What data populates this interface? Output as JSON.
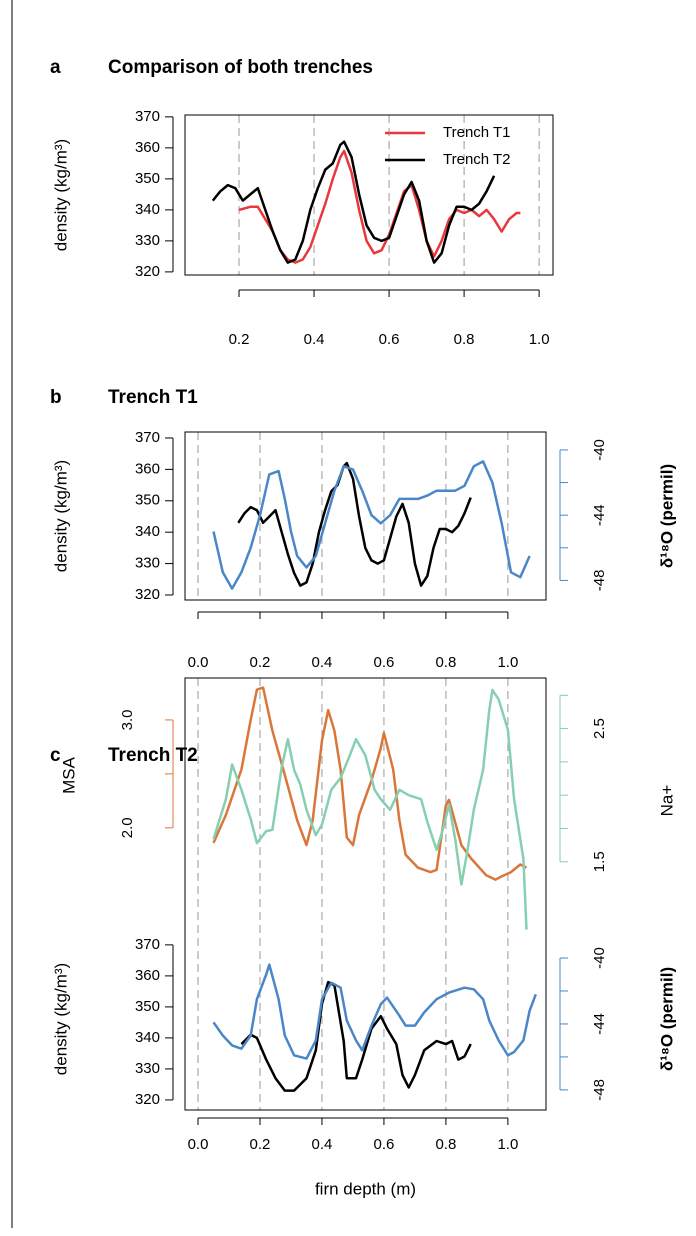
{
  "chart_data": [
    {
      "type": "line",
      "label": "a",
      "title": "Comparison of both trenches",
      "xlim": [
        0.056,
        1.037
      ],
      "xticks": [
        0.2,
        0.4,
        0.6,
        0.8,
        {
          "value": 1,
          "label": "1.0"
        }
      ],
      "ylim": [
        319,
        370.6
      ],
      "yticks": [
        320,
        330,
        340,
        350,
        360,
        370
      ],
      "ylabel": "density (kg/m³)",
      "grid": "x",
      "legend": "top-right",
      "series": [
        {
          "name": "Trench T1",
          "color": "#e8383d",
          "x": [
            0.2,
            0.23,
            0.25,
            0.27,
            0.29,
            0.31,
            0.33,
            0.35,
            0.37,
            0.39,
            0.41,
            0.43,
            0.45,
            0.47,
            0.48,
            0.5,
            0.52,
            0.54,
            0.56,
            0.58,
            0.6,
            0.62,
            0.64,
            0.66,
            0.68,
            0.7,
            0.72,
            0.74,
            0.76,
            0.78,
            0.8,
            0.82,
            0.84,
            0.86,
            0.88,
            0.9,
            0.92,
            0.94,
            0.95
          ],
          "values": [
            340,
            341,
            341,
            337,
            333,
            327,
            324,
            323,
            324,
            328,
            335,
            342,
            350,
            357,
            359,
            352,
            340,
            330,
            326,
            327,
            332,
            339,
            346,
            348,
            340,
            330,
            325,
            330,
            337,
            340,
            339,
            340,
            338,
            340,
            337,
            333,
            337,
            339,
            339
          ]
        },
        {
          "name": "Trench T2",
          "color": "#000000",
          "x": [
            0.13,
            0.15,
            0.17,
            0.19,
            0.21,
            0.23,
            0.25,
            0.27,
            0.29,
            0.31,
            0.33,
            0.35,
            0.37,
            0.39,
            0.41,
            0.43,
            0.45,
            0.47,
            0.48,
            0.5,
            0.52,
            0.54,
            0.56,
            0.58,
            0.6,
            0.62,
            0.64,
            0.66,
            0.68,
            0.7,
            0.72,
            0.74,
            0.76,
            0.78,
            0.8,
            0.82,
            0.84,
            0.86,
            0.88
          ],
          "values": [
            343,
            346,
            348,
            347,
            343,
            345,
            347,
            340,
            333,
            327,
            323,
            324,
            330,
            340,
            347,
            353,
            355,
            361,
            362,
            357,
            345,
            335,
            331,
            330,
            331,
            338,
            345,
            349,
            343,
            330,
            323,
            326,
            335,
            341,
            341,
            340,
            342,
            346,
            351
          ]
        }
      ]
    },
    {
      "type": "line",
      "label": "b",
      "title": "Trench T1",
      "xlim": [
        -0.042,
        1.123
      ],
      "xticks": [
        {
          "value": 0,
          "label": "0.0"
        },
        0.2,
        0.4,
        0.6,
        0.8,
        {
          "value": 1,
          "label": "1.0"
        }
      ],
      "ylim": [
        318.4,
        371.9
      ],
      "yticks": [
        320,
        330,
        340,
        350,
        360,
        370
      ],
      "ylabel": "density (kg/m³)",
      "y2lim": [
        -49.2,
        -38.9
      ],
      "y2ticks": [
        -40,
        -44,
        -48
      ],
      "y2minorticks": [
        -42,
        -46
      ],
      "y2label": "δ¹⁸O (permil)",
      "grid": "x",
      "series": [
        {
          "color": "#000000",
          "x": [
            0.13,
            0.15,
            0.17,
            0.19,
            0.21,
            0.23,
            0.25,
            0.27,
            0.29,
            0.31,
            0.33,
            0.35,
            0.37,
            0.39,
            0.41,
            0.43,
            0.45,
            0.47,
            0.48,
            0.5,
            0.52,
            0.54,
            0.56,
            0.58,
            0.6,
            0.62,
            0.64,
            0.66,
            0.68,
            0.7,
            0.72,
            0.74,
            0.76,
            0.78,
            0.8,
            0.82,
            0.84,
            0.86,
            0.88
          ],
          "values": [
            343,
            346,
            348,
            347,
            343,
            345,
            347,
            340,
            333,
            327,
            323,
            324,
            330,
            340,
            347,
            353,
            355,
            361,
            362,
            357,
            345,
            335,
            331,
            330,
            331,
            338,
            345,
            349,
            343,
            330,
            323,
            326,
            335,
            341,
            341,
            340,
            342,
            346,
            351
          ]
        },
        {
          "color": "#4a86c8",
          "axis": "y2",
          "x": [
            0.05,
            0.08,
            0.11,
            0.14,
            0.17,
            0.2,
            0.23,
            0.26,
            0.28,
            0.3,
            0.32,
            0.35,
            0.38,
            0.41,
            0.44,
            0.47,
            0.5,
            0.53,
            0.56,
            0.59,
            0.62,
            0.65,
            0.68,
            0.71,
            0.74,
            0.77,
            0.8,
            0.83,
            0.86,
            0.89,
            0.92,
            0.95,
            0.98,
            1.01,
            1.04,
            1.07
          ],
          "values": [
            -45,
            -47.5,
            -48.5,
            -47.5,
            -46,
            -44,
            -41.5,
            -41.3,
            -43,
            -45,
            -46.5,
            -47.2,
            -46.5,
            -44.5,
            -42.5,
            -41,
            -41.2,
            -42.5,
            -44,
            -44.5,
            -44,
            -43,
            -43,
            -43,
            -42.8,
            -42.5,
            -42.5,
            -42.5,
            -42.2,
            -41,
            -40.7,
            -42,
            -44.5,
            -47.5,
            -47.8,
            -46.5
          ]
        }
      ]
    },
    {
      "type": "line",
      "label": "c",
      "title": "Trench T2",
      "xlabel": "firn depth (m)",
      "xlim": [
        -0.042,
        1.123
      ],
      "xticks": [
        {
          "value": 0,
          "label": "0.0"
        },
        0.2,
        0.4,
        0.6,
        0.8,
        {
          "value": 1,
          "label": "1.0"
        }
      ],
      "ylim": [
        317.4,
        374.8
      ],
      "yticks": [
        320,
        330,
        340,
        350,
        360,
        370
      ],
      "ylabel": "density (kg/m³)",
      "y2lim": [
        -49.1,
        -38.3
      ],
      "y2ticks": [
        -40,
        -44,
        -48
      ],
      "y2minorticks": [
        -42,
        -46
      ],
      "y2label": "δ¹⁸O (permil)",
      "y3lim": [
        1.47,
        3.5
      ],
      "y3ticks": [
        {
          "value": 2,
          "label": "2.0"
        },
        {
          "value": 3,
          "label": "3.0"
        }
      ],
      "y3minorticks": [
        2.5
      ],
      "y3label": "MSA",
      "y4lim": [
        0.95,
        2.97
      ],
      "y4ticks": [
        1.5,
        2.5
      ],
      "y4minorticks": [
        1.75,
        2.0,
        2.25,
        2.75
      ],
      "y4label": "Na+",
      "grid": "x",
      "series": [
        {
          "color": "#d9773a",
          "axis": "y3",
          "x": [
            0.05,
            0.09,
            0.14,
            0.17,
            0.19,
            0.21,
            0.24,
            0.28,
            0.32,
            0.35,
            0.37,
            0.4,
            0.42,
            0.44,
            0.46,
            0.48,
            0.5,
            0.52,
            0.56,
            0.59,
            0.6,
            0.63,
            0.65,
            0.67,
            0.71,
            0.75,
            0.77,
            0.8,
            0.81,
            0.85,
            0.88,
            0.93,
            0.96,
            0.98,
            1.01,
            1.04,
            1.06
          ],
          "values": [
            1.86,
            2.12,
            2.54,
            3.0,
            3.28,
            3.3,
            2.9,
            2.49,
            2.07,
            1.84,
            2.07,
            2.81,
            3.09,
            2.9,
            2.54,
            1.91,
            1.84,
            2.12,
            2.44,
            2.74,
            2.88,
            2.54,
            2.07,
            1.75,
            1.63,
            1.59,
            1.61,
            2.21,
            2.26,
            1.84,
            1.72,
            1.56,
            1.52,
            1.55,
            1.59,
            1.66,
            1.63
          ]
        },
        {
          "color": "#86cfb0",
          "axis": "y4",
          "x": [
            0.05,
            0.09,
            0.11,
            0.14,
            0.17,
            0.19,
            0.22,
            0.24,
            0.27,
            0.29,
            0.31,
            0.33,
            0.35,
            0.38,
            0.4,
            0.43,
            0.46,
            0.49,
            0.51,
            0.54,
            0.57,
            0.59,
            0.62,
            0.65,
            0.68,
            0.72,
            0.74,
            0.77,
            0.79,
            0.81,
            0.83,
            0.85,
            0.87,
            0.89,
            0.92,
            0.94,
            0.95,
            0.97,
            1.0,
            1.02,
            1.05,
            1.06
          ],
          "values": [
            1.67,
            1.97,
            2.23,
            2.04,
            1.82,
            1.64,
            1.73,
            1.74,
            2.21,
            2.42,
            2.19,
            2.08,
            1.89,
            1.7,
            1.78,
            2.04,
            2.13,
            2.3,
            2.42,
            2.3,
            2.04,
            1.97,
            1.89,
            2.04,
            2.0,
            1.97,
            1.8,
            1.59,
            1.74,
            1.93,
            1.67,
            1.33,
            1.59,
            1.89,
            2.19,
            2.64,
            2.79,
            2.72,
            2.49,
            1.97,
            1.52,
            0.99
          ]
        },
        {
          "color": "#000000",
          "x": [
            0.14,
            0.17,
            0.19,
            0.22,
            0.25,
            0.28,
            0.31,
            0.35,
            0.38,
            0.4,
            0.42,
            0.44,
            0.47,
            0.48,
            0.51,
            0.53,
            0.56,
            0.59,
            0.61,
            0.64,
            0.66,
            0.68,
            0.7,
            0.73,
            0.77,
            0.8,
            0.82,
            0.84,
            0.86,
            0.88
          ],
          "values": [
            338,
            341,
            340,
            333,
            327,
            323,
            323,
            327,
            336,
            351,
            358,
            357,
            339,
            327,
            327,
            333,
            343,
            347,
            343,
            338,
            328,
            324,
            328,
            336,
            339,
            338,
            339,
            333,
            334,
            338
          ]
        },
        {
          "color": "#4a86c8",
          "axis": "y2",
          "x": [
            0.05,
            0.08,
            0.11,
            0.14,
            0.17,
            0.19,
            0.22,
            0.23,
            0.26,
            0.28,
            0.31,
            0.35,
            0.38,
            0.4,
            0.43,
            0.46,
            0.48,
            0.51,
            0.53,
            0.56,
            0.59,
            0.61,
            0.65,
            0.67,
            0.7,
            0.73,
            0.77,
            0.81,
            0.86,
            0.89,
            0.92,
            0.94,
            0.97,
            1.0,
            1.02,
            1.05,
            1.07,
            1.09
          ],
          "values": [
            -43.9,
            -44.7,
            -45.3,
            -45.5,
            -44.7,
            -42.5,
            -41,
            -40.4,
            -42.5,
            -44.7,
            -45.9,
            -46.1,
            -45,
            -42.5,
            -41.5,
            -41.8,
            -43.8,
            -45,
            -45.6,
            -44.1,
            -42.8,
            -42.4,
            -43.5,
            -44.1,
            -44.1,
            -43.3,
            -42.5,
            -42.1,
            -41.8,
            -41.9,
            -42.5,
            -43.8,
            -45,
            -45.9,
            -45.7,
            -45,
            -43.2,
            -42.2
          ]
        }
      ]
    }
  ]
}
